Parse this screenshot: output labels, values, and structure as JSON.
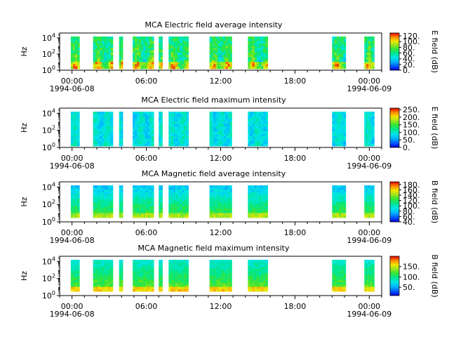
{
  "figure": {
    "time_ticks": [
      "00:00",
      "06:00",
      "12:00",
      "18:00",
      "00:00"
    ],
    "time_tick_hours": [
      0,
      6,
      12,
      18,
      24
    ],
    "start_date": "1994-06-08",
    "end_date": "1994-06-09"
  },
  "chart_data": [
    {
      "type": "heatmap",
      "title": "MCA  Electric field average intensity",
      "xlabel": "",
      "ylabel": "Hz",
      "y_scale": "log",
      "y_ticks": [
        1,
        100,
        10000
      ],
      "y_tick_labels": [
        {
          "base": "10",
          "exp": "0"
        },
        {
          "base": "10",
          "exp": "2"
        },
        {
          "base": "10",
          "exp": "4"
        }
      ],
      "colorbar_label": "E field (dB)",
      "colorbar_ticks": [
        "0.",
        "20.",
        "40.",
        "60.",
        "80.",
        "100.",
        "120."
      ],
      "colorbar_range": [
        0,
        130
      ],
      "colormap": "rainbow",
      "x_range_hours": [
        -1,
        25
      ],
      "data_intervals_hours": [
        [
          -0.1,
          0.6
        ],
        [
          1.7,
          3.3
        ],
        [
          3.8,
          4.1
        ],
        [
          4.9,
          6.6
        ],
        [
          7.0,
          7.3
        ],
        [
          7.8,
          9.4
        ],
        [
          11.1,
          12.9
        ],
        [
          14.2,
          15.8
        ],
        [
          21.0,
          22.1
        ],
        [
          23.6,
          24.4
        ]
      ],
      "grid": false
    },
    {
      "type": "heatmap",
      "title": "MCA  Electric field maximum intensity",
      "xlabel": "",
      "ylabel": "Hz",
      "y_scale": "log",
      "y_ticks": [
        1,
        100,
        10000
      ],
      "y_tick_labels": [
        {
          "base": "10",
          "exp": "0"
        },
        {
          "base": "10",
          "exp": "2"
        },
        {
          "base": "10",
          "exp": "4"
        }
      ],
      "colorbar_label": "E field (dB)",
      "colorbar_ticks": [
        "0.",
        "50.",
        "100.",
        "150.",
        "200.",
        "250."
      ],
      "colorbar_range": [
        0,
        260
      ],
      "colormap": "rainbow",
      "x_range_hours": [
        -1,
        25
      ],
      "data_intervals_hours": [
        [
          -0.1,
          0.6
        ],
        [
          1.7,
          3.3
        ],
        [
          3.8,
          4.1
        ],
        [
          4.9,
          6.6
        ],
        [
          7.0,
          7.3
        ],
        [
          7.8,
          9.4
        ],
        [
          11.1,
          12.9
        ],
        [
          14.2,
          15.8
        ],
        [
          21.0,
          22.1
        ],
        [
          23.6,
          24.4
        ]
      ],
      "grid": false
    },
    {
      "type": "heatmap",
      "title": "MCA  Magnetic field average intensity",
      "xlabel": "",
      "ylabel": "Hz",
      "y_scale": "log",
      "y_ticks": [
        1,
        100,
        10000
      ],
      "y_tick_labels": [
        {
          "base": "10",
          "exp": "0"
        },
        {
          "base": "10",
          "exp": "2"
        },
        {
          "base": "10",
          "exp": "4"
        }
      ],
      "colorbar_label": "B field (dB)",
      "colorbar_ticks": [
        "40.",
        "60.",
        "80.",
        "100.",
        "120.",
        "140.",
        "160.",
        "180."
      ],
      "colorbar_range": [
        40,
        190
      ],
      "colormap": "rainbow",
      "x_range_hours": [
        -1,
        25
      ],
      "data_intervals_hours": [
        [
          -0.1,
          0.6
        ],
        [
          1.7,
          3.3
        ],
        [
          3.8,
          4.1
        ],
        [
          4.9,
          6.6
        ],
        [
          7.0,
          7.3
        ],
        [
          7.8,
          9.4
        ],
        [
          11.1,
          12.9
        ],
        [
          14.2,
          15.8
        ],
        [
          21.0,
          22.1
        ],
        [
          23.6,
          24.4
        ]
      ],
      "grid": false
    },
    {
      "type": "heatmap",
      "title": "MCA  Magnetic field maximum intensity",
      "xlabel": "",
      "ylabel": "Hz",
      "y_scale": "log",
      "y_ticks": [
        1,
        100,
        10000
      ],
      "y_tick_labels": [
        {
          "base": "10",
          "exp": "0"
        },
        {
          "base": "10",
          "exp": "2"
        },
        {
          "base": "10",
          "exp": "4"
        }
      ],
      "colorbar_label": "B field (dB)",
      "colorbar_ticks": [
        "50.",
        "100.",
        "150."
      ],
      "colorbar_range": [
        10,
        200
      ],
      "colormap": "rainbow",
      "x_range_hours": [
        -1,
        25
      ],
      "data_intervals_hours": [
        [
          -0.1,
          0.6
        ],
        [
          1.7,
          3.3
        ],
        [
          3.8,
          4.1
        ],
        [
          4.9,
          6.6
        ],
        [
          7.0,
          7.3
        ],
        [
          7.8,
          9.4
        ],
        [
          11.1,
          12.9
        ],
        [
          14.2,
          15.8
        ],
        [
          21.0,
          22.1
        ],
        [
          23.6,
          24.4
        ]
      ],
      "grid": false
    }
  ]
}
